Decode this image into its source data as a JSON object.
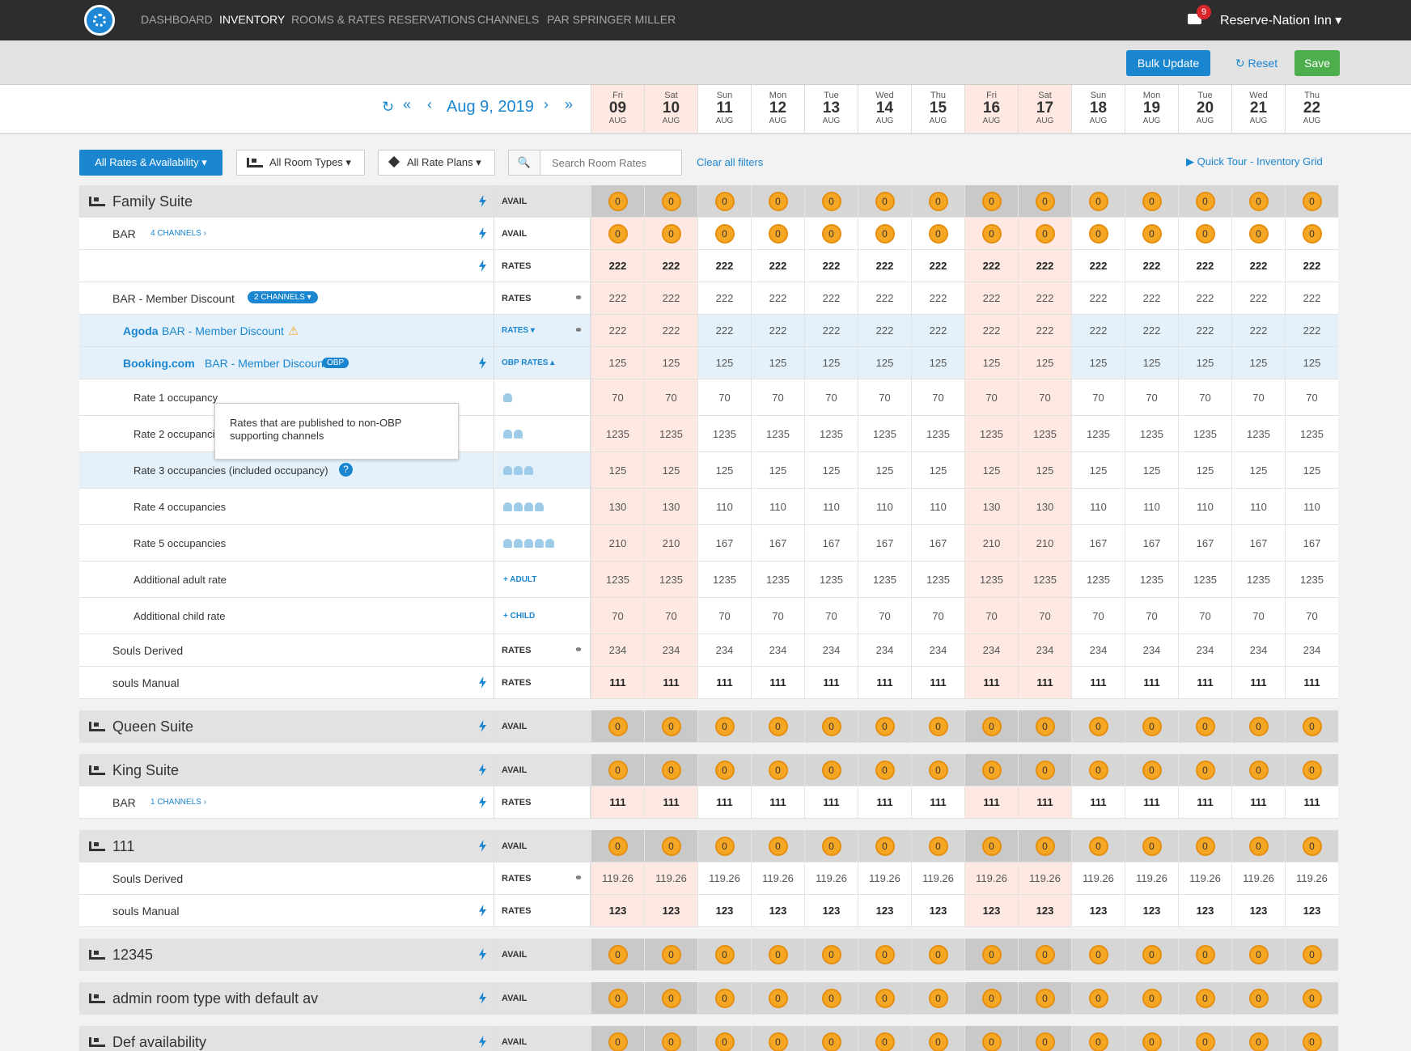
{
  "nav": {
    "items": [
      "DASHBOARD",
      "INVENTORY",
      "ROOMS & RATES",
      "RESERVATIONS",
      "CHANNELS",
      "PAR SPRINGER MILLER"
    ],
    "mail_count": "9",
    "hotel": "Reserve-Nation Inn ▾"
  },
  "actions": {
    "bulk_update": "Bulk Update",
    "reset": "↻ Reset",
    "save": "Save"
  },
  "datebar": {
    "current": "Aug 9, 2019",
    "refresh": "↻",
    "prev_week": "«",
    "prev": "‹",
    "next": "›",
    "next_week": "»"
  },
  "days": [
    {
      "dow": "Fri",
      "day": "09",
      "mon": "AUG",
      "weekend": true
    },
    {
      "dow": "Sat",
      "day": "10",
      "mon": "AUG",
      "weekend": true
    },
    {
      "dow": "Sun",
      "day": "11",
      "mon": "AUG",
      "weekend": false
    },
    {
      "dow": "Mon",
      "day": "12",
      "mon": "AUG",
      "weekend": false
    },
    {
      "dow": "Tue",
      "day": "13",
      "mon": "AUG",
      "weekend": false
    },
    {
      "dow": "Wed",
      "day": "14",
      "mon": "AUG",
      "weekend": false
    },
    {
      "dow": "Thu",
      "day": "15",
      "mon": "AUG",
      "weekend": false
    },
    {
      "dow": "Fri",
      "day": "16",
      "mon": "AUG",
      "weekend": true
    },
    {
      "dow": "Sat",
      "day": "17",
      "mon": "AUG",
      "weekend": true
    },
    {
      "dow": "Sun",
      "day": "18",
      "mon": "AUG",
      "weekend": false
    },
    {
      "dow": "Mon",
      "day": "19",
      "mon": "AUG",
      "weekend": false
    },
    {
      "dow": "Tue",
      "day": "20",
      "mon": "AUG",
      "weekend": false
    },
    {
      "dow": "Wed",
      "day": "21",
      "mon": "AUG",
      "weekend": false
    },
    {
      "dow": "Thu",
      "day": "22",
      "mon": "AUG",
      "weekend": false
    }
  ],
  "filters": {
    "rates_avail": "All Rates & Availability ▾",
    "room_types": "All Room Types ▾",
    "rate_plans": "All Rate Plans ▾",
    "search_placeholder": "Search Room Rates",
    "clear": "Clear all filters",
    "quick_tour": "▶   Quick Tour - Inventory Grid"
  },
  "tooltip": "Rates that are published to non-OBP supporting channels",
  "rows": [
    {
      "kind": "room",
      "label": "Family Suite",
      "tag": "AVAIL",
      "icon": "bolt",
      "badges": true,
      "values": [
        "0",
        "0",
        "0",
        "0",
        "0",
        "0",
        "0",
        "0",
        "0",
        "0",
        "0",
        "0",
        "0",
        "0"
      ]
    },
    {
      "kind": "plan",
      "label": "BAR",
      "sub": "4 CHANNELS ›",
      "tag": "AVAIL",
      "icon": "bolt",
      "badges": true,
      "values": [
        "0",
        "0",
        "0",
        "0",
        "0",
        "0",
        "0",
        "0",
        "0",
        "0",
        "0",
        "0",
        "0",
        "0"
      ]
    },
    {
      "kind": "plan",
      "label": "",
      "tag": "RATES",
      "icon": "bolt",
      "bold": true,
      "values": [
        "222",
        "222",
        "222",
        "222",
        "222",
        "222",
        "222",
        "222",
        "222",
        "222",
        "222",
        "222",
        "222",
        "222"
      ]
    },
    {
      "kind": "plan",
      "label": "BAR - Member Discount",
      "pill": "2 CHANNELS ▾",
      "tag": "RATES",
      "icon": "link",
      "values": [
        "222",
        "222",
        "222",
        "222",
        "222",
        "222",
        "222",
        "222",
        "222",
        "222",
        "222",
        "222",
        "222",
        "222"
      ]
    },
    {
      "kind": "channel",
      "channel": "Agoda",
      "label": "BAR - Member Discount",
      "warn": "⚠",
      "tag": "RATES ▾",
      "icon": "link",
      "values": [
        "222",
        "222",
        "222",
        "222",
        "222",
        "222",
        "222",
        "222",
        "222",
        "222",
        "222",
        "222",
        "222",
        "222"
      ]
    },
    {
      "kind": "channel",
      "channel": "Booking.com",
      "label": "BAR - Member Discount",
      "obp": "OBP",
      "tag": "OBP RATES ▴",
      "icon": "bolt",
      "values": [
        "125",
        "125",
        "125",
        "125",
        "125",
        "125",
        "125",
        "125",
        "125",
        "125",
        "125",
        "125",
        "125",
        "125"
      ]
    },
    {
      "kind": "occ",
      "label": "Rate 1 occupancy",
      "persons": 1,
      "values": [
        "70",
        "70",
        "70",
        "70",
        "70",
        "70",
        "70",
        "70",
        "70",
        "70",
        "70",
        "70",
        "70",
        "70"
      ]
    },
    {
      "kind": "occ",
      "label": "Rate 2 occupancies",
      "persons": 2,
      "values": [
        "1235",
        "1235",
        "1235",
        "1235",
        "1235",
        "1235",
        "1235",
        "1235",
        "1235",
        "1235",
        "1235",
        "1235",
        "1235",
        "1235"
      ]
    },
    {
      "kind": "occ",
      "label": "Rate 3 occupancies (included occupancy)",
      "persons": 3,
      "help": "?",
      "hl": true,
      "values": [
        "125",
        "125",
        "125",
        "125",
        "125",
        "125",
        "125",
        "125",
        "125",
        "125",
        "125",
        "125",
        "125",
        "125"
      ]
    },
    {
      "kind": "occ",
      "label": "Rate 4 occupancies",
      "persons": 4,
      "values": [
        "130",
        "130",
        "110",
        "110",
        "110",
        "110",
        "110",
        "130",
        "130",
        "110",
        "110",
        "110",
        "110",
        "110"
      ]
    },
    {
      "kind": "occ",
      "label": "Rate 5 occupancies",
      "persons": 5,
      "values": [
        "210",
        "210",
        "167",
        "167",
        "167",
        "167",
        "167",
        "210",
        "210",
        "167",
        "167",
        "167",
        "167",
        "167"
      ]
    },
    {
      "kind": "occ",
      "label": "Additional adult rate",
      "extra": "+ ADULT",
      "values": [
        "1235",
        "1235",
        "1235",
        "1235",
        "1235",
        "1235",
        "1235",
        "1235",
        "1235",
        "1235",
        "1235",
        "1235",
        "1235",
        "1235"
      ]
    },
    {
      "kind": "occ",
      "label": "Additional child rate",
      "extra": "+ CHILD",
      "values": [
        "70",
        "70",
        "70",
        "70",
        "70",
        "70",
        "70",
        "70",
        "70",
        "70",
        "70",
        "70",
        "70",
        "70"
      ]
    },
    {
      "kind": "plan",
      "label": "Souls Derived",
      "tag": "RATES",
      "icon": "link",
      "values": [
        "234",
        "234",
        "234",
        "234",
        "234",
        "234",
        "234",
        "234",
        "234",
        "234",
        "234",
        "234",
        "234",
        "234"
      ]
    },
    {
      "kind": "plan",
      "label": "souls Manual",
      "tag": "RATES",
      "icon": "bolt",
      "bold": true,
      "values": [
        "111",
        "111",
        "111",
        "111",
        "111",
        "111",
        "111",
        "111",
        "111",
        "111",
        "111",
        "111",
        "111",
        "111"
      ]
    },
    {
      "kind": "room",
      "label": "Queen Suite",
      "tag": "AVAIL",
      "icon": "bolt",
      "badges": true,
      "gap": true,
      "values": [
        "0",
        "0",
        "0",
        "0",
        "0",
        "0",
        "0",
        "0",
        "0",
        "0",
        "0",
        "0",
        "0",
        "0"
      ]
    },
    {
      "kind": "room",
      "label": "King Suite",
      "tag": "AVAIL",
      "icon": "bolt",
      "badges": true,
      "gap": true,
      "values": [
        "0",
        "0",
        "0",
        "0",
        "0",
        "0",
        "0",
        "0",
        "0",
        "0",
        "0",
        "0",
        "0",
        "0"
      ]
    },
    {
      "kind": "plan",
      "label": "BAR",
      "sub": "1 CHANNELS ›",
      "tag": "RATES",
      "icon": "bolt",
      "bold": true,
      "values": [
        "111",
        "111",
        "111",
        "111",
        "111",
        "111",
        "111",
        "111",
        "111",
        "111",
        "111",
        "111",
        "111",
        "111"
      ]
    },
    {
      "kind": "room",
      "label": "111",
      "tag": "AVAIL",
      "icon": "bolt",
      "badges": true,
      "gap": true,
      "values": [
        "0",
        "0",
        "0",
        "0",
        "0",
        "0",
        "0",
        "0",
        "0",
        "0",
        "0",
        "0",
        "0",
        "0"
      ]
    },
    {
      "kind": "plan",
      "label": "Souls Derived",
      "tag": "RATES",
      "icon": "link",
      "values": [
        "119.26",
        "119.26",
        "119.26",
        "119.26",
        "119.26",
        "119.26",
        "119.26",
        "119.26",
        "119.26",
        "119.26",
        "119.26",
        "119.26",
        "119.26",
        "119.26"
      ]
    },
    {
      "kind": "plan",
      "label": "souls Manual",
      "tag": "RATES",
      "icon": "bolt",
      "bold": true,
      "values": [
        "123",
        "123",
        "123",
        "123",
        "123",
        "123",
        "123",
        "123",
        "123",
        "123",
        "123",
        "123",
        "123",
        "123"
      ]
    },
    {
      "kind": "room",
      "label": "12345",
      "tag": "AVAIL",
      "icon": "bolt",
      "badges": true,
      "gap": true,
      "values": [
        "0",
        "0",
        "0",
        "0",
        "0",
        "0",
        "0",
        "0",
        "0",
        "0",
        "0",
        "0",
        "0",
        "0"
      ]
    },
    {
      "kind": "room",
      "label": "admin room type with default av",
      "tag": "AVAIL",
      "icon": "bolt",
      "badges": true,
      "gap": true,
      "values": [
        "0",
        "0",
        "0",
        "0",
        "0",
        "0",
        "0",
        "0",
        "0",
        "0",
        "0",
        "0",
        "0",
        "0"
      ]
    },
    {
      "kind": "room",
      "label": "Def availability",
      "tag": "AVAIL",
      "icon": "bolt",
      "badges": true,
      "gap": true,
      "values": [
        "0",
        "0",
        "0",
        "0",
        "0",
        "0",
        "0",
        "0",
        "0",
        "0",
        "0",
        "0",
        "0",
        "0"
      ]
    }
  ]
}
